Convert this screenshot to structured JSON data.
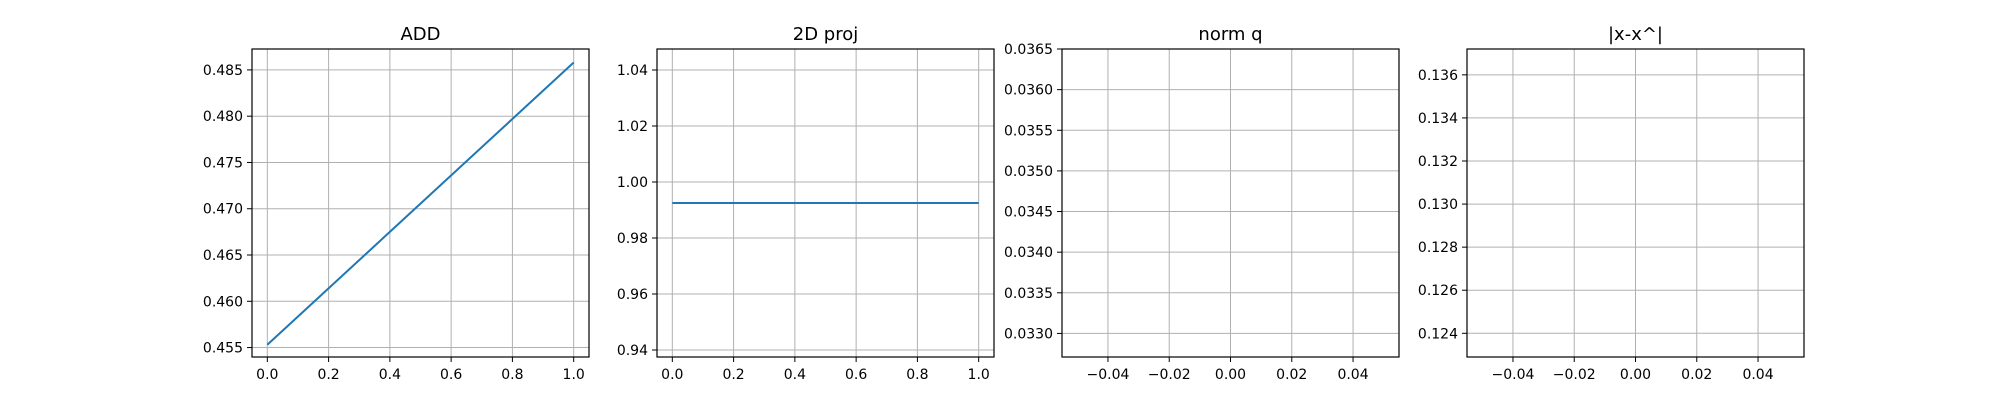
{
  "colors": {
    "series": "#1f77b4",
    "grid": "#b0b0b0",
    "axes": "#000000",
    "background": "#ffffff"
  },
  "chart_data": [
    {
      "type": "line",
      "title": "ADD",
      "xlabel": "",
      "ylabel": "",
      "grid": true,
      "xlim": [
        -0.05,
        1.05
      ],
      "ylim": [
        0.45398,
        0.48726
      ],
      "xticks": [
        0.0,
        0.2,
        0.4,
        0.6,
        0.8,
        1.0
      ],
      "xtick_labels": [
        "0.0",
        "0.2",
        "0.4",
        "0.6",
        "0.8",
        "1.0"
      ],
      "yticks": [
        0.455,
        0.46,
        0.465,
        0.47,
        0.475,
        0.48,
        0.485
      ],
      "ytick_labels": [
        "0.455",
        "0.460",
        "0.465",
        "0.470",
        "0.475",
        "0.480",
        "0.485"
      ],
      "series": [
        {
          "x": [
            0.0,
            1.0
          ],
          "y": [
            0.4553,
            0.4858
          ]
        }
      ]
    },
    {
      "type": "line",
      "title": "2D proj",
      "xlabel": "",
      "ylabel": "",
      "grid": true,
      "xlim": [
        -0.05,
        1.05
      ],
      "ylim": [
        0.9375,
        1.0475
      ],
      "xticks": [
        0.0,
        0.2,
        0.4,
        0.6,
        0.8,
        1.0
      ],
      "xtick_labels": [
        "0.0",
        "0.2",
        "0.4",
        "0.6",
        "0.8",
        "1.0"
      ],
      "yticks": [
        0.94,
        0.96,
        0.98,
        1.0,
        1.02,
        1.04
      ],
      "ytick_labels": [
        "0.94",
        "0.96",
        "0.98",
        "1.00",
        "1.02",
        "1.04"
      ],
      "series": [
        {
          "x": [
            0.0,
            1.0
          ],
          "y": [
            0.9925,
            0.9925
          ]
        }
      ]
    },
    {
      "type": "line",
      "title": "norm q",
      "xlabel": "",
      "ylabel": "",
      "grid": true,
      "xlim": [
        -0.055,
        0.055
      ],
      "ylim": [
        0.03271,
        0.0365
      ],
      "xticks": [
        -0.04,
        -0.02,
        0.0,
        0.02,
        0.04
      ],
      "xtick_labels": [
        "−0.04",
        "−0.02",
        "0.00",
        "0.02",
        "0.04"
      ],
      "yticks": [
        0.033,
        0.0335,
        0.034,
        0.0345,
        0.035,
        0.0355,
        0.036,
        0.0365
      ],
      "ytick_labels": [
        "0.0330",
        "0.0335",
        "0.0340",
        "0.0345",
        "0.0350",
        "0.0355",
        "0.0360",
        "0.0365"
      ],
      "series": []
    },
    {
      "type": "line",
      "title": "|x-x^|",
      "xlabel": "",
      "ylabel": "",
      "grid": true,
      "xlim": [
        -0.055,
        0.055
      ],
      "ylim": [
        0.1229,
        0.1372
      ],
      "xticks": [
        -0.04,
        -0.02,
        0.0,
        0.02,
        0.04
      ],
      "xtick_labels": [
        "−0.04",
        "−0.02",
        "0.00",
        "0.02",
        "0.04"
      ],
      "yticks": [
        0.124,
        0.126,
        0.128,
        0.13,
        0.132,
        0.134,
        0.136
      ],
      "ytick_labels": [
        "0.124",
        "0.126",
        "0.128",
        "0.130",
        "0.132",
        "0.134",
        "0.136"
      ],
      "series": []
    }
  ]
}
